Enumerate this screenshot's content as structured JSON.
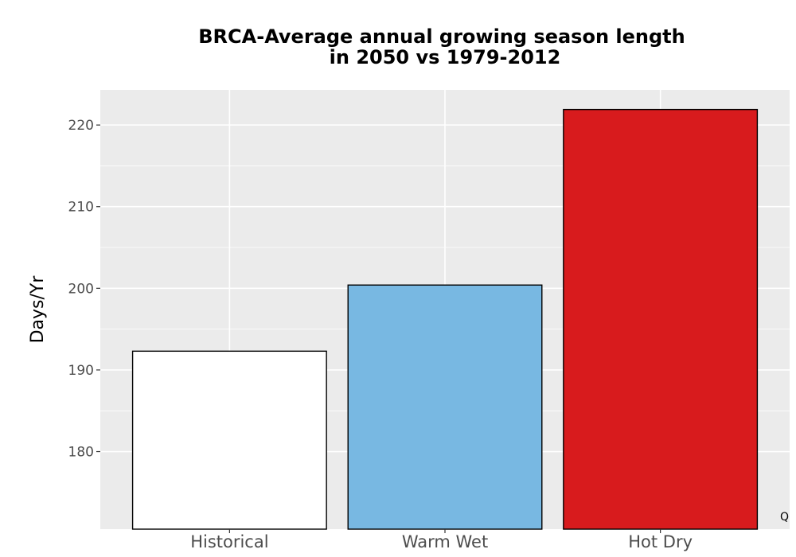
{
  "chart_data": {
    "type": "bar",
    "title": "BRCA-Average annual growing season length",
    "subtitle": "in 2050 vs 1979-2012",
    "ylabel": "Days/Yr",
    "xlabel": "",
    "categories": [
      "Historical",
      "Warm Wet",
      "Hot Dry"
    ],
    "values": [
      192.3,
      200.4,
      221.9
    ],
    "colors": [
      "#ffffff",
      "#78b8e2",
      "#d81b1d"
    ],
    "bar_outline_color": "#000000",
    "panel_background": "#ebebeb",
    "grid_color": "#ffffff",
    "grid": true,
    "ylim": [
      170.5,
      224.3
    ],
    "yticks": [
      180,
      190,
      200,
      210,
      220
    ],
    "ytick_labels": [
      "180",
      "190",
      "200",
      "210",
      "220"
    ],
    "legend": "none",
    "corner_note": "Q"
  }
}
